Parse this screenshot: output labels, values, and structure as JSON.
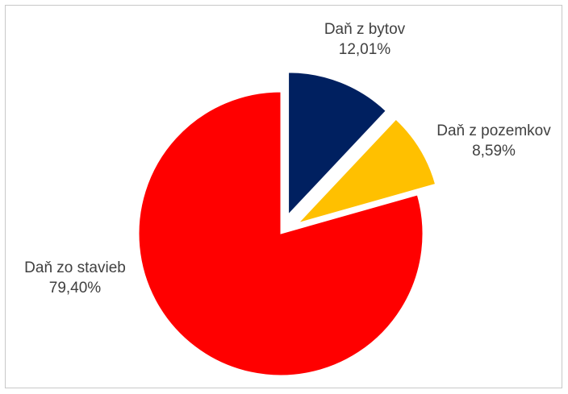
{
  "chart_data": {
    "type": "pie",
    "title": "",
    "exploded": true,
    "legend": "none",
    "slices": [
      {
        "name": "Daň z bytov",
        "value": 12.01,
        "value_label": "12,01%",
        "color": "#002060"
      },
      {
        "name": "Daň z pozemkov",
        "value": 8.59,
        "value_label": "8,59%",
        "color": "#FFC000"
      },
      {
        "name": "Daň zo stavieb",
        "value": 79.4,
        "value_label": "79,40%",
        "color": "#FF0000"
      }
    ]
  }
}
